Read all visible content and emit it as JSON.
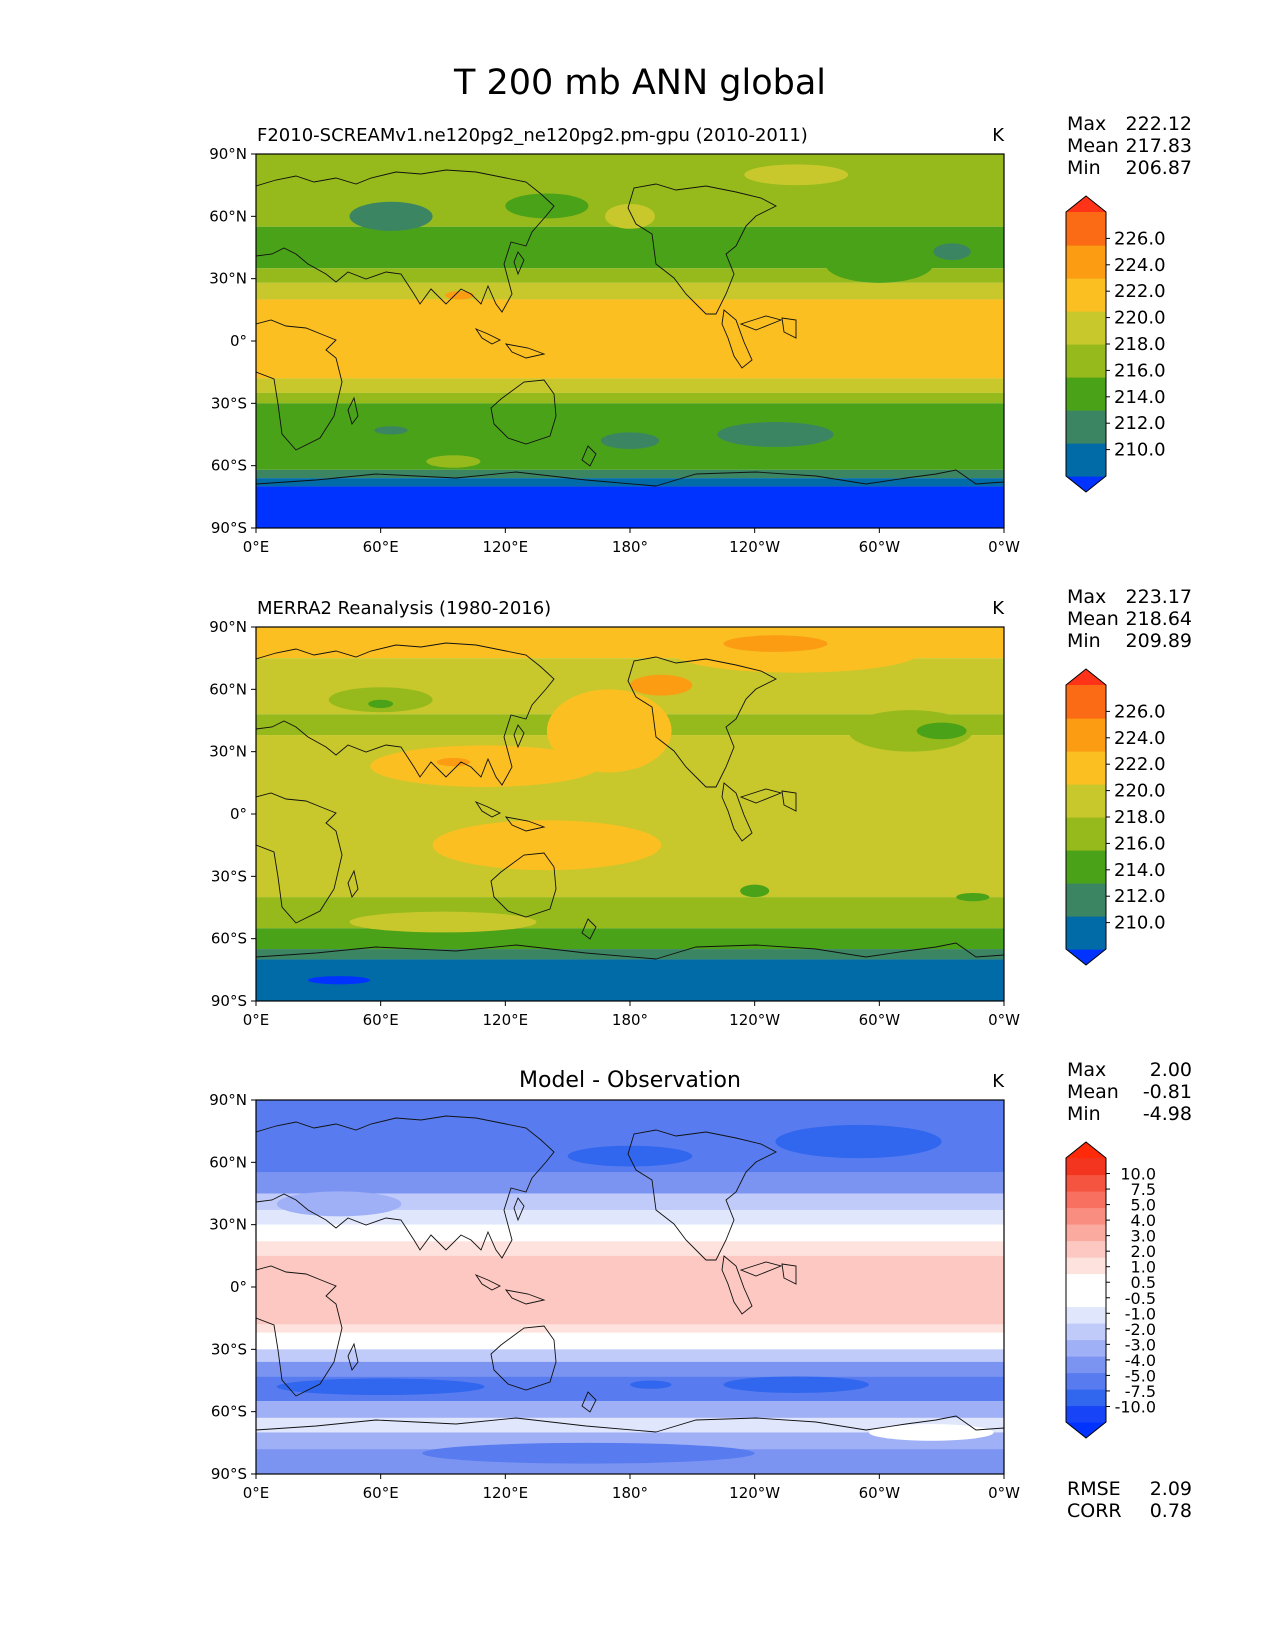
{
  "figure": {
    "title": "T 200 mb ANN global",
    "xticks": [
      "0°E",
      "60°E",
      "120°E",
      "180°",
      "120°W",
      "60°W",
      "0°W"
    ],
    "yticks": [
      "90°N",
      "60°N",
      "30°N",
      "0°",
      "30°S",
      "60°S",
      "90°S"
    ]
  },
  "panels": [
    {
      "id": "model",
      "title": "F2010-SCREAMv1.ne120pg2_ne120pg2.pm-gpu (2010-2011)",
      "units": "K",
      "stats": [
        {
          "label": "Max",
          "value": "222.12"
        },
        {
          "label": "Mean",
          "value": "217.83"
        },
        {
          "label": "Min",
          "value": "206.87"
        }
      ],
      "colorbar": {
        "labels": [
          "226.0",
          "224.0",
          "222.0",
          "220.0",
          "218.0",
          "216.0",
          "214.0",
          "212.0",
          "210.0"
        ],
        "colors": [
          "#0033ff",
          "#006ba6",
          "#3c8563",
          "#4aa219",
          "#96ba1c",
          "#c8c82c",
          "#fbbf22",
          "#fb9c13",
          "#fb6b16",
          "#ff3318"
        ]
      },
      "bands": [
        {
          "lat": [
            55,
            90
          ],
          "color": "#96ba1c"
        },
        {
          "lat": [
            35,
            55
          ],
          "color": "#4aa219"
        },
        {
          "lat": [
            28,
            35
          ],
          "color": "#96ba1c"
        },
        {
          "lat": [
            20,
            28
          ],
          "color": "#c8c82c"
        },
        {
          "lat": [
            -18,
            20
          ],
          "color": "#fbbf22"
        },
        {
          "lat": [
            -25,
            -18
          ],
          "color": "#c8c82c"
        },
        {
          "lat": [
            -30,
            -25
          ],
          "color": "#96ba1c"
        },
        {
          "lat": [
            -62,
            -30
          ],
          "color": "#4aa219"
        },
        {
          "lat": [
            -66,
            -62
          ],
          "color": "#3c8563"
        },
        {
          "lat": [
            -70,
            -66
          ],
          "color": "#006ba6"
        },
        {
          "lat": [
            -90,
            -70
          ],
          "color": "#0033ff"
        }
      ],
      "blobs": [
        {
          "lon": 65,
          "lat": 60,
          "rx": 20,
          "ry": 7,
          "color": "#3c8563"
        },
        {
          "lon": 300,
          "lat": 37,
          "rx": 26,
          "ry": 9,
          "color": "#4aa219"
        },
        {
          "lon": 335,
          "lat": 43,
          "rx": 9,
          "ry": 4,
          "color": "#3c8563"
        },
        {
          "lon": 180,
          "lat": 60,
          "rx": 12,
          "ry": 6,
          "color": "#c8c82c"
        },
        {
          "lon": 140,
          "lat": 65,
          "rx": 20,
          "ry": 6,
          "color": "#4aa219"
        },
        {
          "lon": 260,
          "lat": 80,
          "rx": 25,
          "ry": 5,
          "color": "#c8c82c"
        },
        {
          "lon": 250,
          "lat": -45,
          "rx": 28,
          "ry": 6,
          "color": "#3c8563"
        },
        {
          "lon": 180,
          "lat": -48,
          "rx": 14,
          "ry": 4,
          "color": "#3c8563"
        },
        {
          "lon": 65,
          "lat": -43,
          "rx": 8,
          "ry": 2,
          "color": "#3c8563"
        },
        {
          "lon": 98,
          "lat": 22,
          "rx": 7,
          "ry": 2,
          "color": "#fb9c13"
        },
        {
          "lon": 95,
          "lat": -58,
          "rx": 13,
          "ry": 3,
          "color": "#96ba1c"
        }
      ]
    },
    {
      "id": "obs",
      "title": "MERRA2 Reanalysis (1980-2016)",
      "units": "K",
      "stats": [
        {
          "label": "Max",
          "value": "223.17"
        },
        {
          "label": "Mean",
          "value": "218.64"
        },
        {
          "label": "Min",
          "value": "209.89"
        }
      ],
      "colorbar": {
        "labels": [
          "226.0",
          "224.0",
          "222.0",
          "220.0",
          "218.0",
          "216.0",
          "214.0",
          "212.0",
          "210.0"
        ],
        "colors": [
          "#0033ff",
          "#006ba6",
          "#3c8563",
          "#4aa219",
          "#96ba1c",
          "#c8c82c",
          "#fbbf22",
          "#fb9c13",
          "#fb6b16",
          "#ff3318"
        ]
      },
      "bands": [
        {
          "lat": [
            75,
            90
          ],
          "color": "#fbbf22"
        },
        {
          "lat": [
            48,
            75
          ],
          "color": "#c8c82c"
        },
        {
          "lat": [
            38,
            48
          ],
          "color": "#96ba1c"
        },
        {
          "lat": [
            -40,
            38
          ],
          "color": "#c8c82c"
        },
        {
          "lat": [
            -55,
            -40
          ],
          "color": "#96ba1c"
        },
        {
          "lat": [
            -65,
            -55
          ],
          "color": "#4aa219"
        },
        {
          "lat": [
            -70,
            -65
          ],
          "color": "#3c8563"
        },
        {
          "lat": [
            -90,
            -70
          ],
          "color": "#006ba6"
        }
      ],
      "blobs": [
        {
          "lon": 110,
          "lat": 23,
          "rx": 55,
          "ry": 10,
          "color": "#fbbf22"
        },
        {
          "lon": 140,
          "lat": -15,
          "rx": 55,
          "ry": 12,
          "color": "#fbbf22"
        },
        {
          "lon": 170,
          "lat": 40,
          "rx": 30,
          "ry": 20,
          "color": "#fbbf22"
        },
        {
          "lon": 260,
          "lat": 78,
          "rx": 60,
          "ry": 10,
          "color": "#fbbf22"
        },
        {
          "lon": 250,
          "lat": 82,
          "rx": 25,
          "ry": 4,
          "color": "#fb9c13"
        },
        {
          "lon": 195,
          "lat": 62,
          "rx": 15,
          "ry": 5,
          "color": "#fb9c13"
        },
        {
          "lon": 95,
          "lat": 25,
          "rx": 8,
          "ry": 2,
          "color": "#fb9c13"
        },
        {
          "lon": 60,
          "lat": 55,
          "rx": 25,
          "ry": 6,
          "color": "#96ba1c"
        },
        {
          "lon": 315,
          "lat": 40,
          "rx": 30,
          "ry": 10,
          "color": "#96ba1c"
        },
        {
          "lon": 330,
          "lat": 40,
          "rx": 12,
          "ry": 4,
          "color": "#4aa219"
        },
        {
          "lon": 60,
          "lat": 53,
          "rx": 6,
          "ry": 2,
          "color": "#4aa219"
        },
        {
          "lon": 240,
          "lat": -37,
          "rx": 7,
          "ry": 3,
          "color": "#4aa219"
        },
        {
          "lon": 345,
          "lat": -40,
          "rx": 8,
          "ry": 2,
          "color": "#4aa219"
        },
        {
          "lon": 90,
          "lat": -52,
          "rx": 45,
          "ry": 5,
          "color": "#c8c82c"
        },
        {
          "lon": 40,
          "lat": -80,
          "rx": 15,
          "ry": 2,
          "color": "#0033ff"
        }
      ]
    },
    {
      "id": "diff",
      "title": "Model - Observation",
      "units": "K",
      "stats": [
        {
          "label": "Max",
          "value": "2.00"
        },
        {
          "label": "Mean",
          "value": "-0.81"
        },
        {
          "label": "Min",
          "value": "-4.98"
        }
      ],
      "colorbar": {
        "labels": [
          "10.0",
          "7.5",
          "5.0",
          "4.0",
          "3.0",
          "2.0",
          "1.0",
          "0.5",
          "-0.5",
          "-1.0",
          "-2.0",
          "-3.0",
          "-4.0",
          "-5.0",
          "-7.5",
          "-10.0"
        ],
        "colors": [
          "#0033ff",
          "#1744f7",
          "#3166ee",
          "#587cef",
          "#7c94f1",
          "#a0b0f6",
          "#c0cbfa",
          "#e0e6fc",
          "#ffffff",
          "#ffffff",
          "#fde2de",
          "#fcc8c1",
          "#fbaaa0",
          "#f98e80",
          "#f77060",
          "#f55440",
          "#f33520",
          "#ff2a0a"
        ]
      },
      "bands": [
        {
          "lat": [
            55,
            90
          ],
          "color": "#587cef"
        },
        {
          "lat": [
            45,
            55
          ],
          "color": "#7c94f1"
        },
        {
          "lat": [
            37,
            45
          ],
          "color": "#c0cbfa"
        },
        {
          "lat": [
            30,
            37
          ],
          "color": "#e0e6fc"
        },
        {
          "lat": [
            22,
            30
          ],
          "color": "#ffffff"
        },
        {
          "lat": [
            15,
            22
          ],
          "color": "#fde2de"
        },
        {
          "lat": [
            -18,
            15
          ],
          "color": "#fcc8c1"
        },
        {
          "lat": [
            -22,
            -18
          ],
          "color": "#fde2de"
        },
        {
          "lat": [
            -30,
            -22
          ],
          "color": "#ffffff"
        },
        {
          "lat": [
            -36,
            -30
          ],
          "color": "#c0cbfa"
        },
        {
          "lat": [
            -43,
            -36
          ],
          "color": "#7c94f1"
        },
        {
          "lat": [
            -55,
            -43
          ],
          "color": "#587cef"
        },
        {
          "lat": [
            -63,
            -55
          ],
          "color": "#a0b0f6"
        },
        {
          "lat": [
            -70,
            -63
          ],
          "color": "#e0e6fc"
        },
        {
          "lat": [
            -78,
            -70
          ],
          "color": "#a0b0f6"
        },
        {
          "lat": [
            -90,
            -78
          ],
          "color": "#7c94f1"
        }
      ],
      "blobs": [
        {
          "lon": 180,
          "lat": 63,
          "rx": 30,
          "ry": 5,
          "color": "#3166ee"
        },
        {
          "lon": 290,
          "lat": 70,
          "rx": 40,
          "ry": 8,
          "color": "#3166ee"
        },
        {
          "lon": 40,
          "lat": 40,
          "rx": 30,
          "ry": 6,
          "color": "#a0b0f6"
        },
        {
          "lon": 260,
          "lat": -47,
          "rx": 35,
          "ry": 4,
          "color": "#3166ee"
        },
        {
          "lon": 190,
          "lat": -47,
          "rx": 10,
          "ry": 2,
          "color": "#3166ee"
        },
        {
          "lon": 60,
          "lat": -48,
          "rx": 50,
          "ry": 4,
          "color": "#3166ee"
        },
        {
          "lon": 325,
          "lat": -70,
          "rx": 30,
          "ry": 4,
          "color": "#ffffff"
        },
        {
          "lon": 160,
          "lat": -80,
          "rx": 80,
          "ry": 5,
          "color": "#587cef"
        }
      ],
      "metrics": [
        {
          "label": "RMSE",
          "value": "2.09"
        },
        {
          "label": "CORR",
          "value": "0.78"
        }
      ]
    }
  ]
}
